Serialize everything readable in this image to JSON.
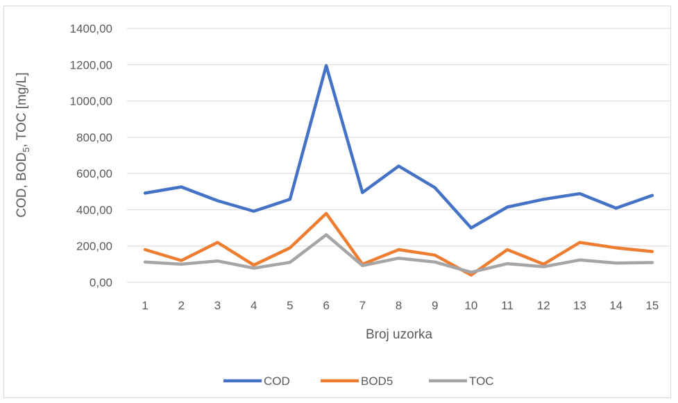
{
  "chart_data": {
    "type": "line",
    "title": "",
    "xlabel": "Broj uzorka",
    "ylabel": "COD, BOD5, TOC [mg/L]",
    "ylabel_parts": {
      "before": "COD, BOD",
      "subscript": "5",
      "after": ", TOC [mg/L]"
    },
    "categories": [
      "1",
      "2",
      "3",
      "4",
      "5",
      "6",
      "7",
      "8",
      "9",
      "10",
      "11",
      "12",
      "13",
      "14",
      "15"
    ],
    "ylim": [
      0,
      1400
    ],
    "yticks": [
      0,
      200,
      400,
      600,
      800,
      1000,
      1200,
      1400
    ],
    "ytick_labels": [
      "0,00",
      "200,00",
      "400,00",
      "600,00",
      "800,00",
      "1000,00",
      "1200,00",
      "1400,00"
    ],
    "grid": "horizontal",
    "legend_position": "bottom",
    "series": [
      {
        "name": "COD",
        "color": "#4472c4",
        "values": [
          492,
          526,
          450,
          392,
          458,
          1195,
          495,
          641,
          522,
          300,
          415,
          458,
          489,
          409,
          479
        ]
      },
      {
        "name": "BOD5",
        "color": "#ed7d31",
        "values": [
          180,
          120,
          220,
          95,
          190,
          380,
          100,
          180,
          150,
          40,
          180,
          100,
          220,
          190,
          170
        ]
      },
      {
        "name": "TOC",
        "color": "#a5a5a5",
        "values": [
          112,
          100,
          118,
          78,
          110,
          262,
          92,
          133,
          112,
          55,
          103,
          86,
          123,
          106,
          109
        ]
      }
    ]
  }
}
